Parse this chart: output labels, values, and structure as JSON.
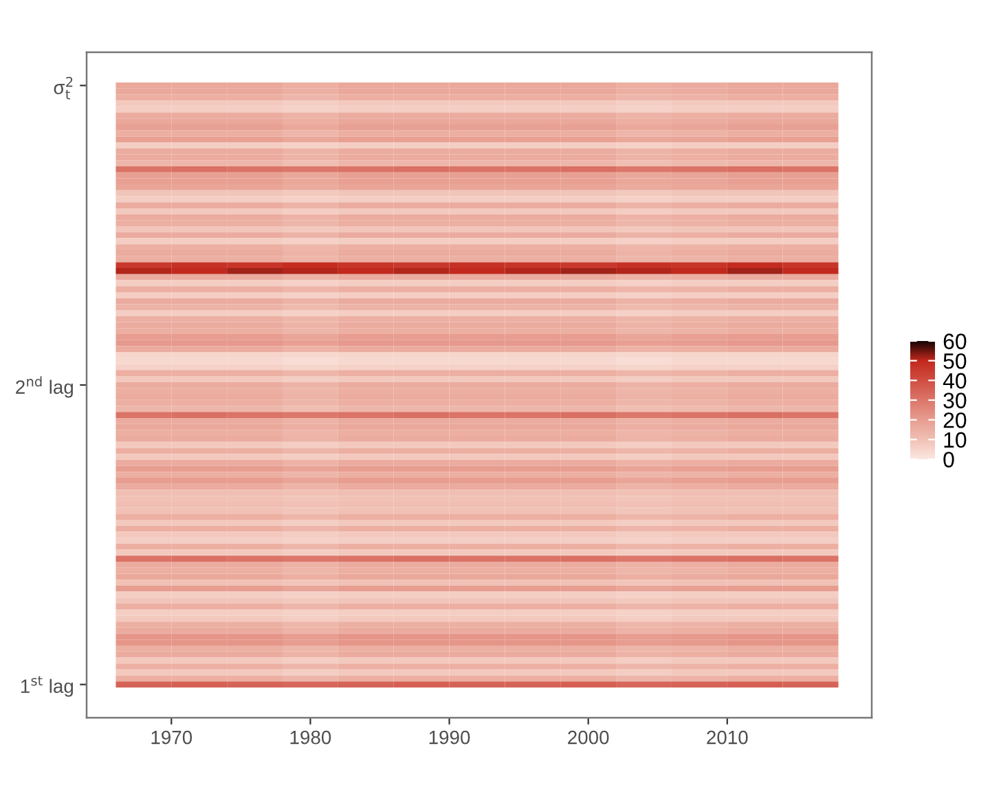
{
  "chart_data": {
    "type": "heatmap",
    "x": [
      1968,
      1972,
      1976,
      1980,
      1984,
      1988,
      1992,
      1996,
      2000,
      2004,
      2008,
      2012,
      2016
    ],
    "xlim": [
      1963.9,
      2020.4
    ],
    "xticks": [
      1970,
      1980,
      1990,
      2000,
      2010
    ],
    "y_categories": [
      "σ$^{2}$$_{t}$",
      null,
      null,
      null,
      null,
      null,
      null,
      null,
      null,
      null,
      null,
      null,
      null,
      null,
      null,
      null,
      null,
      null,
      null,
      null,
      null,
      null,
      null,
      null,
      null,
      null,
      null,
      null,
      null,
      null,
      null,
      null,
      null,
      null,
      null,
      null,
      null,
      null,
      null,
      null,
      null,
      null,
      null,
      null,
      null,
      null,
      null,
      null,
      null,
      null,
      "2$^{nd}$ lag",
      null,
      null,
      null,
      null,
      null,
      null,
      null,
      null,
      null,
      null,
      null,
      null,
      null,
      null,
      null,
      null,
      null,
      null,
      null,
      null,
      null,
      null,
      null,
      null,
      null,
      null,
      null,
      null,
      null,
      null,
      null,
      null,
      null,
      null,
      null,
      null,
      null,
      null,
      null,
      null,
      null,
      null,
      null,
      null,
      null,
      null,
      null,
      null,
      null,
      "1$^{st}$ lag"
    ],
    "clim": [
      0,
      60
    ],
    "cticks": [
      0,
      10,
      20,
      30,
      40,
      50,
      60
    ],
    "cells": [
      [
        17,
        17,
        17,
        15,
        17,
        17,
        17,
        17,
        17,
        15,
        16,
        17,
        17
      ],
      [
        17,
        17,
        17,
        15,
        17,
        17,
        17,
        17,
        17,
        15,
        16,
        17,
        17
      ],
      [
        15,
        15,
        15,
        13,
        15,
        15,
        15,
        15,
        15,
        13,
        14,
        15,
        15
      ],
      [
        8,
        8,
        8,
        7,
        8,
        8,
        8,
        8,
        8,
        7,
        8,
        8,
        8
      ],
      [
        7,
        7,
        7,
        6,
        7,
        7,
        7,
        7,
        7,
        6,
        7,
        7,
        7
      ],
      [
        16,
        16,
        16,
        14,
        16,
        16,
        16,
        16,
        16,
        14,
        15,
        16,
        16
      ],
      [
        17,
        17,
        17,
        15,
        17,
        17,
        17,
        17,
        17,
        15,
        16,
        17,
        17
      ],
      [
        19,
        19,
        19,
        17,
        19,
        19,
        19,
        19,
        19,
        17,
        18,
        19,
        19
      ],
      [
        15,
        15,
        15,
        13,
        15,
        15,
        15,
        15,
        15,
        13,
        14,
        15,
        15
      ],
      [
        19,
        19,
        19,
        17,
        19,
        19,
        19,
        19,
        19,
        17,
        18,
        19,
        19
      ],
      [
        7,
        7,
        7,
        6,
        7,
        7,
        7,
        7,
        7,
        6,
        7,
        7,
        7
      ],
      [
        16,
        16,
        16,
        14,
        16,
        16,
        16,
        16,
        16,
        14,
        15,
        16,
        16
      ],
      [
        16,
        16,
        16,
        14,
        16,
        16,
        16,
        16,
        16,
        14,
        15,
        16,
        16
      ],
      [
        13,
        13,
        13,
        11,
        13,
        13,
        13,
        13,
        13,
        11,
        12,
        13,
        13
      ],
      [
        31,
        32,
        31,
        30,
        31,
        32,
        31,
        31,
        32,
        30,
        31,
        32,
        31
      ],
      [
        19,
        19,
        19,
        17,
        19,
        19,
        19,
        19,
        19,
        17,
        18,
        19,
        19
      ],
      [
        19,
        19,
        19,
        17,
        19,
        19,
        19,
        19,
        19,
        17,
        18,
        19,
        19
      ],
      [
        18,
        18,
        18,
        16,
        18,
        18,
        18,
        18,
        18,
        16,
        17,
        18,
        18
      ],
      [
        9,
        9,
        9,
        8,
        9,
        9,
        9,
        9,
        9,
        8,
        9,
        9,
        9
      ],
      [
        7,
        7,
        7,
        6,
        7,
        7,
        7,
        7,
        7,
        6,
        7,
        7,
        7
      ],
      [
        16,
        16,
        16,
        14,
        16,
        16,
        16,
        16,
        16,
        14,
        15,
        16,
        16
      ],
      [
        8,
        8,
        8,
        7,
        8,
        8,
        8,
        8,
        8,
        7,
        8,
        8,
        8
      ],
      [
        16,
        16,
        16,
        14,
        16,
        16,
        16,
        16,
        16,
        14,
        15,
        16,
        16
      ],
      [
        15,
        15,
        15,
        13,
        15,
        15,
        15,
        15,
        15,
        13,
        14,
        15,
        15
      ],
      [
        9,
        9,
        9,
        8,
        9,
        9,
        9,
        9,
        9,
        8,
        9,
        9,
        9
      ],
      [
        16,
        16,
        16,
        14,
        16,
        16,
        16,
        16,
        16,
        14,
        15,
        16,
        16
      ],
      [
        7,
        7,
        7,
        6,
        7,
        7,
        7,
        7,
        7,
        6,
        7,
        7,
        7
      ],
      [
        15,
        15,
        15,
        13,
        15,
        15,
        15,
        15,
        15,
        13,
        14,
        15,
        15
      ],
      [
        16,
        16,
        16,
        14,
        16,
        16,
        16,
        16,
        16,
        14,
        15,
        16,
        16
      ],
      [
        15,
        15,
        15,
        13,
        15,
        15,
        15,
        15,
        15,
        13,
        14,
        15,
        15
      ],
      [
        46,
        48,
        47,
        49,
        47,
        46,
        48,
        47,
        46,
        48,
        47,
        49,
        47
      ],
      [
        51,
        50,
        52,
        51,
        50,
        51,
        50,
        51,
        52,
        51,
        50,
        52,
        50
      ],
      [
        16,
        16,
        16,
        14,
        16,
        16,
        16,
        16,
        16,
        14,
        15,
        16,
        16
      ],
      [
        7,
        7,
        7,
        6,
        7,
        7,
        7,
        7,
        7,
        6,
        7,
        7,
        7
      ],
      [
        15,
        15,
        15,
        13,
        15,
        15,
        15,
        15,
        15,
        13,
        14,
        15,
        15
      ],
      [
        7,
        7,
        7,
        6,
        7,
        7,
        7,
        7,
        7,
        6,
        7,
        7,
        7
      ],
      [
        16,
        16,
        16,
        14,
        16,
        16,
        16,
        16,
        16,
        14,
        15,
        16,
        16
      ],
      [
        14,
        14,
        14,
        12,
        14,
        14,
        14,
        14,
        14,
        12,
        13,
        14,
        14
      ],
      [
        7,
        7,
        7,
        6,
        7,
        7,
        7,
        7,
        7,
        6,
        7,
        7,
        7
      ],
      [
        15,
        15,
        15,
        13,
        15,
        15,
        15,
        15,
        15,
        13,
        14,
        15,
        15
      ],
      [
        16,
        16,
        16,
        14,
        16,
        16,
        16,
        16,
        16,
        14,
        15,
        16,
        16
      ],
      [
        15,
        15,
        15,
        13,
        15,
        15,
        15,
        15,
        15,
        13,
        14,
        15,
        15
      ],
      [
        20,
        20,
        20,
        18,
        20,
        20,
        20,
        20,
        20,
        18,
        19,
        20,
        20
      ],
      [
        21,
        21,
        21,
        19,
        21,
        21,
        21,
        21,
        21,
        19,
        20,
        21,
        21
      ],
      [
        16,
        16,
        16,
        14,
        16,
        16,
        16,
        16,
        16,
        14,
        15,
        16,
        16
      ],
      [
        5,
        5,
        5,
        4,
        5,
        5,
        5,
        5,
        5,
        4,
        5,
        5,
        5
      ],
      [
        4,
        4,
        4,
        3,
        4,
        4,
        4,
        4,
        4,
        3,
        4,
        4,
        4
      ],
      [
        6,
        6,
        6,
        5,
        6,
        6,
        6,
        6,
        6,
        5,
        6,
        6,
        6
      ],
      [
        15,
        15,
        15,
        13,
        15,
        15,
        15,
        15,
        15,
        13,
        14,
        15,
        15
      ],
      [
        8,
        8,
        8,
        7,
        8,
        8,
        8,
        8,
        8,
        7,
        8,
        8,
        8
      ],
      [
        16,
        16,
        16,
        14,
        16,
        16,
        16,
        16,
        16,
        14,
        15,
        16,
        16
      ],
      [
        15,
        15,
        15,
        13,
        15,
        15,
        15,
        15,
        15,
        13,
        14,
        15,
        15
      ],
      [
        16,
        16,
        16,
        14,
        16,
        16,
        16,
        16,
        16,
        14,
        15,
        16,
        16
      ],
      [
        15,
        15,
        15,
        13,
        15,
        15,
        15,
        15,
        15,
        13,
        14,
        15,
        15
      ],
      [
        13,
        13,
        13,
        11,
        13,
        13,
        13,
        13,
        13,
        11,
        12,
        13,
        13
      ],
      [
        31,
        32,
        31,
        30,
        31,
        32,
        31,
        31,
        32,
        30,
        31,
        32,
        31
      ],
      [
        16,
        16,
        16,
        14,
        16,
        16,
        16,
        16,
        16,
        14,
        15,
        16,
        16
      ],
      [
        17,
        17,
        17,
        15,
        17,
        17,
        17,
        17,
        17,
        15,
        16,
        17,
        17
      ],
      [
        15,
        15,
        15,
        13,
        15,
        15,
        15,
        15,
        15,
        13,
        14,
        15,
        15
      ],
      [
        16,
        16,
        16,
        14,
        16,
        16,
        16,
        16,
        16,
        14,
        15,
        16,
        16
      ],
      [
        8,
        8,
        8,
        7,
        8,
        8,
        8,
        8,
        8,
        7,
        8,
        8,
        8
      ],
      [
        15,
        15,
        15,
        13,
        15,
        15,
        15,
        15,
        15,
        13,
        14,
        15,
        15
      ],
      [
        8,
        8,
        8,
        7,
        8,
        8,
        8,
        8,
        8,
        7,
        8,
        8,
        8
      ],
      [
        16,
        16,
        16,
        14,
        16,
        16,
        16,
        16,
        16,
        14,
        15,
        16,
        16
      ],
      [
        20,
        20,
        20,
        18,
        20,
        20,
        20,
        20,
        20,
        18,
        19,
        20,
        20
      ],
      [
        15,
        15,
        15,
        13,
        15,
        15,
        15,
        15,
        15,
        13,
        14,
        15,
        15
      ],
      [
        20,
        20,
        20,
        18,
        20,
        20,
        20,
        20,
        20,
        18,
        19,
        20,
        20
      ],
      [
        16,
        16,
        16,
        14,
        16,
        16,
        16,
        16,
        16,
        14,
        15,
        16,
        16
      ],
      [
        11,
        11,
        11,
        10,
        11,
        11,
        11,
        11,
        11,
        10,
        11,
        11,
        11
      ],
      [
        10,
        10,
        10,
        9,
        10,
        10,
        10,
        10,
        10,
        9,
        10,
        10,
        10
      ],
      [
        11,
        11,
        11,
        10,
        11,
        11,
        11,
        11,
        11,
        10,
        11,
        11,
        11
      ],
      [
        10,
        10,
        10,
        9,
        10,
        10,
        10,
        10,
        10,
        9,
        10,
        10,
        10
      ],
      [
        15,
        15,
        15,
        13,
        15,
        15,
        15,
        15,
        15,
        13,
        14,
        15,
        15
      ],
      [
        8,
        8,
        8,
        7,
        8,
        8,
        8,
        8,
        8,
        7,
        8,
        8,
        8
      ],
      [
        15,
        15,
        15,
        13,
        15,
        15,
        15,
        15,
        15,
        13,
        14,
        15,
        15
      ],
      [
        8,
        8,
        8,
        7,
        8,
        8,
        8,
        8,
        8,
        7,
        8,
        8,
        8
      ],
      [
        7,
        7,
        7,
        6,
        7,
        7,
        7,
        7,
        7,
        6,
        7,
        7,
        7
      ],
      [
        15,
        15,
        15,
        13,
        15,
        15,
        15,
        15,
        15,
        13,
        14,
        15,
        15
      ],
      [
        8,
        8,
        8,
        7,
        8,
        8,
        8,
        8,
        8,
        7,
        8,
        8,
        8
      ],
      [
        31,
        32,
        31,
        30,
        31,
        32,
        31,
        31,
        32,
        30,
        31,
        32,
        31
      ],
      [
        16,
        16,
        16,
        14,
        16,
        16,
        16,
        16,
        16,
        14,
        15,
        16,
        16
      ],
      [
        15,
        15,
        15,
        13,
        15,
        15,
        15,
        15,
        15,
        13,
        14,
        15,
        15
      ],
      [
        17,
        17,
        17,
        15,
        17,
        17,
        17,
        17,
        17,
        15,
        16,
        17,
        17
      ],
      [
        10,
        10,
        10,
        9,
        10,
        10,
        10,
        10,
        10,
        9,
        10,
        10,
        10
      ],
      [
        20,
        20,
        20,
        18,
        20,
        20,
        20,
        20,
        20,
        18,
        19,
        20,
        20
      ],
      [
        7,
        7,
        7,
        6,
        7,
        7,
        7,
        7,
        7,
        6,
        7,
        7,
        7
      ],
      [
        9,
        9,
        9,
        8,
        9,
        9,
        9,
        9,
        9,
        8,
        9,
        9,
        9
      ],
      [
        15,
        15,
        15,
        13,
        15,
        15,
        15,
        15,
        15,
        13,
        14,
        15,
        15
      ],
      [
        7,
        7,
        7,
        6,
        7,
        7,
        7,
        7,
        7,
        6,
        7,
        7,
        7
      ],
      [
        8,
        8,
        8,
        7,
        8,
        8,
        8,
        8,
        8,
        7,
        8,
        8,
        8
      ],
      [
        15,
        15,
        15,
        13,
        15,
        15,
        15,
        15,
        15,
        13,
        14,
        15,
        15
      ],
      [
        16,
        16,
        16,
        14,
        16,
        16,
        16,
        16,
        16,
        14,
        15,
        16,
        16
      ],
      [
        22,
        22,
        22,
        20,
        22,
        22,
        22,
        22,
        22,
        20,
        21,
        22,
        22
      ],
      [
        22,
        22,
        22,
        20,
        22,
        22,
        22,
        22,
        22,
        20,
        21,
        22,
        22
      ],
      [
        15,
        15,
        15,
        13,
        15,
        15,
        15,
        15,
        15,
        13,
        14,
        15,
        15
      ],
      [
        16,
        16,
        16,
        14,
        16,
        16,
        16,
        16,
        16,
        14,
        15,
        16,
        16
      ],
      [
        8,
        8,
        8,
        7,
        8,
        8,
        8,
        8,
        8,
        7,
        8,
        8,
        8
      ],
      [
        15,
        15,
        15,
        13,
        15,
        15,
        15,
        15,
        15,
        13,
        14,
        15,
        15
      ],
      [
        8,
        8,
        8,
        7,
        8,
        8,
        8,
        8,
        8,
        7,
        8,
        8,
        8
      ],
      [
        15,
        15,
        15,
        13,
        15,
        15,
        15,
        15,
        15,
        13,
        14,
        15,
        15
      ],
      [
        35,
        36,
        35,
        34,
        35,
        36,
        35,
        35,
        36,
        34,
        35,
        36,
        35
      ]
    ]
  }
}
